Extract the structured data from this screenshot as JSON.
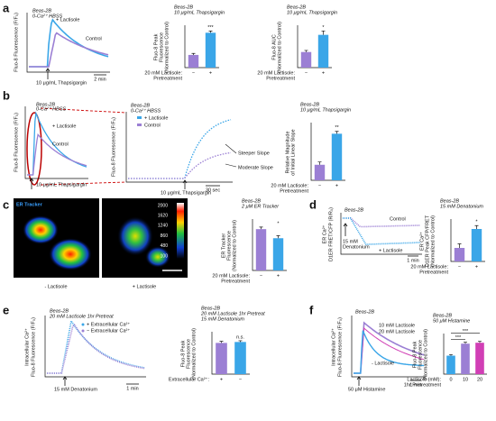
{
  "a": {
    "label": "a",
    "cell_line": "Beas-2B",
    "medium": "0-Ca²⁺ HBSS",
    "legend": [
      "+ Lactisole",
      "Control"
    ],
    "stimulus": "10 μg/mL Thapsigargin",
    "scale": "2 min",
    "ylabel": "Fluo-8 Fluorescence (F/F₀)",
    "bar_charts": [
      {
        "title": [
          "Beas-2B",
          "10 μg/mL Thapsigargin"
        ],
        "ylabel": [
          "Fluo-8 Peak",
          "Fluorescence",
          "(Normalized to Control)"
        ],
        "xlabel": [
          "20 mM Lactisole:",
          "Pretreatment"
        ],
        "categories": [
          "−",
          "+"
        ],
        "values": [
          100,
          275
        ],
        "errors": [
          12,
          14
        ],
        "colors": [
          "#9b7fd4",
          "#3aa6e8"
        ],
        "significance": [
          "***"
        ],
        "ylim": [
          0,
          320
        ]
      },
      {
        "title": [
          "Beas-2B",
          "10 μg/mL Thapsigargin"
        ],
        "ylabel": [
          "Fluo-8 AUC",
          "(Normalized to Control)"
        ],
        "xlabel": [
          "20 mM Lactisole:",
          "Pretreatment"
        ],
        "categories": [
          "−",
          "+"
        ],
        "values": [
          100,
          210
        ],
        "errors": [
          10,
          25
        ],
        "colors": [
          "#9b7fd4",
          "#3aa6e8"
        ],
        "significance": [
          "*"
        ],
        "ylim": [
          0,
          260
        ]
      }
    ]
  },
  "b": {
    "label": "b",
    "inset": {
      "cell_line": "Beas-2B",
      "medium": "0-Ca²⁺ HBSS",
      "legend": [
        "+ Lactisole",
        "Control"
      ],
      "stimulus": "10 μg/mL Thapsigargin",
      "ylabel": "Fluo-8 Fluorescence (F/F₀)"
    },
    "cell_line": "Beas-2B",
    "medium": "0-Ca²⁺ HBSS",
    "legend": [
      "+ Lactisole",
      "Control"
    ],
    "annotations": [
      "Steeper Slope",
      "Moderate Slope"
    ],
    "scale": "30 sec",
    "stimulus": "10 μg/mL Thapsigargin",
    "ylabel": "Fluo-8 Fluorescence (F/F₀)",
    "bar_charts": [
      {
        "title": [
          "Beas-2B",
          "10 μg/mL Thapsigargin"
        ],
        "ylabel": [
          "Relative Magnitude",
          "of Initial Linear Slope"
        ],
        "xlabel": [
          "20 mM Lactisole:",
          "Pretreatment"
        ],
        "categories": [
          "−",
          "+"
        ],
        "values": [
          100,
          300
        ],
        "errors": [
          18,
          15
        ],
        "colors": [
          "#9b7fd4",
          "#3aa6e8"
        ],
        "significance": [
          "**"
        ],
        "ylim": [
          0,
          360
        ]
      }
    ]
  },
  "c": {
    "label": "c",
    "title": "ER Tracker",
    "colorbar": [
      2000,
      1620,
      1240,
      860,
      480,
      100
    ],
    "images": [
      "- Lactisole",
      "+ Lactisole"
    ],
    "bar_charts": [
      {
        "title": [
          "Beas-2B",
          "2 μM ER Tracker"
        ],
        "ylabel": [
          "ER Tracker",
          "Fluorescence",
          "(Normalized to Control)"
        ],
        "xlabel": [
          "20 mM Lactisole:",
          "Pretreatment"
        ],
        "categories": [
          "−",
          "+"
        ],
        "values": [
          100,
          78
        ],
        "errors": [
          5,
          6
        ],
        "colors": [
          "#9b7fd4",
          "#3aa6e8"
        ],
        "significance": [
          "*"
        ],
        "ylim": [
          0,
          120
        ]
      }
    ]
  },
  "d": {
    "label": "d",
    "cell_line": "Beas-2B",
    "legend": [
      "Control",
      "+ Lactisole"
    ],
    "stimulus": [
      "15 mM",
      "Denatonium"
    ],
    "scale": "1 min",
    "ylabel": [
      "ER Ca²⁺",
      "D1ER FRET/CFP (R/R₀)"
    ],
    "bar_charts": [
      {
        "title": [
          "Beas-2B",
          "15 mM Denatonium"
        ],
        "ylabel": [
          "ER Ca²⁺",
          "D1ER Peak CFP/FRET",
          "(Normalized to Control)"
        ],
        "xlabel": [
          "20 mM Lactisole:",
          "Pretreatment"
        ],
        "categories": [
          "−",
          "+"
        ],
        "values": [
          100,
          240
        ],
        "errors": [
          30,
          25
        ],
        "colors": [
          "#9b7fd4",
          "#3aa6e8"
        ],
        "significance": [
          "*"
        ],
        "ylim": [
          0,
          300
        ]
      }
    ]
  },
  "e": {
    "label": "e",
    "cell_line": "Beas-2B",
    "condition": "20 mM Lactisole 1hr Pretreat",
    "legend": [
      "+ Extracellular Ca²⁺",
      "− Extracellular Ca²⁺"
    ],
    "stimulus": "15 mM Denatonium",
    "scale": "1 min",
    "ylabel": [
      "Intracellular Ca²⁺",
      "Fluo-8 Fluorescence (F/F₀)"
    ],
    "bar_charts": [
      {
        "title": [
          "Beas-2B",
          "20 mM Lactisole 1hr Pretreat",
          "15 mM Denatonium"
        ],
        "ylabel": [
          "Fluo-8 Peak",
          "Fluorescence",
          "(Normalized to Control)"
        ],
        "xlabel": [
          "Extracellular Ca²⁺:"
        ],
        "categories": [
          "+",
          "−"
        ],
        "values": [
          100,
          103
        ],
        "errors": [
          5,
          4
        ],
        "colors": [
          "#9b7fd4",
          "#3aa6e8"
        ],
        "significance": [
          "n.s."
        ],
        "ylim": [
          0,
          130
        ]
      }
    ]
  },
  "f": {
    "label": "f",
    "cell_line": "Beas-2B",
    "legend": [
      "10 mM Lactisole",
      "20 mM Lactisole",
      "- Lactisole"
    ],
    "stimulus": "50 μM Histamine",
    "scale": "1 min",
    "ylabel": [
      "Intracellular Ca²⁺",
      "Fluo-8 Fluorescence (F/F₀)"
    ],
    "bar_charts": [
      {
        "title": [
          "Beas-2B",
          "50 μM Histamine"
        ],
        "ylabel": [
          "Fluo-8 Peak",
          "Fluorescence",
          "(Normalized to Control)"
        ],
        "xlabel": [
          "Lactisole (mM):",
          "1hr Pretreatment"
        ],
        "categories": [
          "0",
          "10",
          "20"
        ],
        "values": [
          100,
          165,
          170
        ],
        "errors": [
          6,
          8,
          8
        ],
        "colors": [
          "#3aa6e8",
          "#9b7fd4",
          "#d13fb5"
        ],
        "significance": [
          "***",
          "***"
        ],
        "ylim": [
          0,
          210
        ]
      }
    ]
  }
}
